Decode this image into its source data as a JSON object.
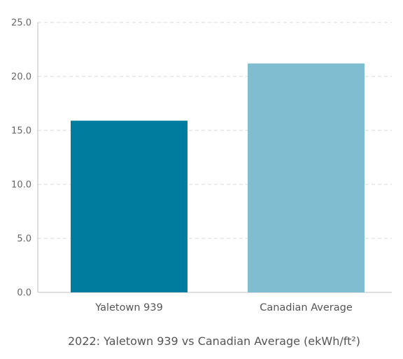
{
  "chart_data": {
    "type": "bar",
    "title": "2022: Yaletown 939 vs Canadian Average (ekWh/ft²)",
    "xlabel": "",
    "ylabel": "",
    "categories": [
      "Yaletown 939",
      "Canadian Average"
    ],
    "values": [
      15.9,
      21.2
    ],
    "colors": [
      "#007d9e",
      "#7fbdd0"
    ],
    "ylim": [
      0,
      25
    ],
    "yticks": [
      "0.0",
      "5.0",
      "10.0",
      "15.0",
      "20.0",
      "25.0"
    ],
    "grid": true,
    "legend": "none"
  }
}
